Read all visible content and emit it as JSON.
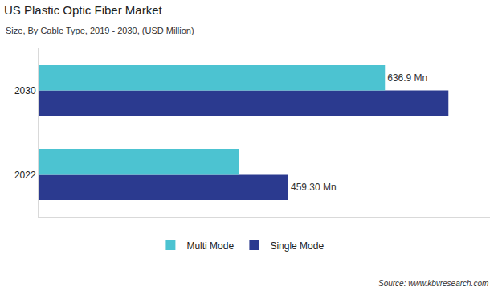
{
  "chart_data": {
    "type": "bar",
    "orientation": "horizontal",
    "title": "US Plastic Optic Fiber Market",
    "subtitle": "Size, By Cable Type, 2019 - 2030, (USD Million)",
    "source": "Source: www.kbvresearch.com",
    "categories": [
      "2022",
      "2030"
    ],
    "series": [
      {
        "name": "Multi Mode",
        "color": "#4cc3d1",
        "values": [
          368.6,
          636.9
        ],
        "value_labels": [
          null,
          "636.9 Mn"
        ]
      },
      {
        "name": "Single Mode",
        "color": "#2b3a8f",
        "values": [
          459.3,
          753.6
        ],
        "value_labels": [
          "459.30 Mn",
          null
        ]
      }
    ],
    "xlim": [
      0,
      830
    ],
    "xticks": [],
    "grid": false,
    "tick_labels": "y",
    "legend": "bottom",
    "data_labels": true
  }
}
